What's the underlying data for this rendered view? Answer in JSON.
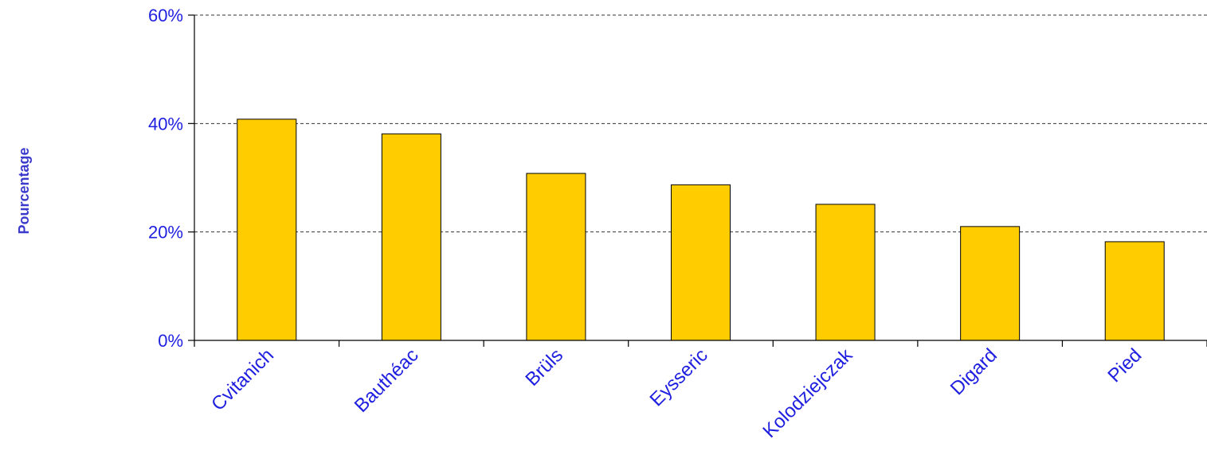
{
  "chart_data": {
    "type": "bar",
    "title": "",
    "xlabel": "",
    "ylabel": "Pourcentage",
    "ylim": [
      0,
      60
    ],
    "yticks": [
      0,
      20,
      40,
      60
    ],
    "ytick_suffix": "%",
    "grid": true,
    "categories": [
      "Cvitanich",
      "Bauthéac",
      "Brüls",
      "Eysseric",
      "Kolodziejczak",
      "Digard",
      "Pied"
    ],
    "series": [
      {
        "values": [
          40.8,
          38.1,
          30.8,
          28.7,
          25.1,
          21.0,
          18.2
        ]
      }
    ],
    "colors": {
      "bar": "#ffcc00",
      "text": "#1f1fe0",
      "ylabel": "#3a3acc"
    }
  }
}
